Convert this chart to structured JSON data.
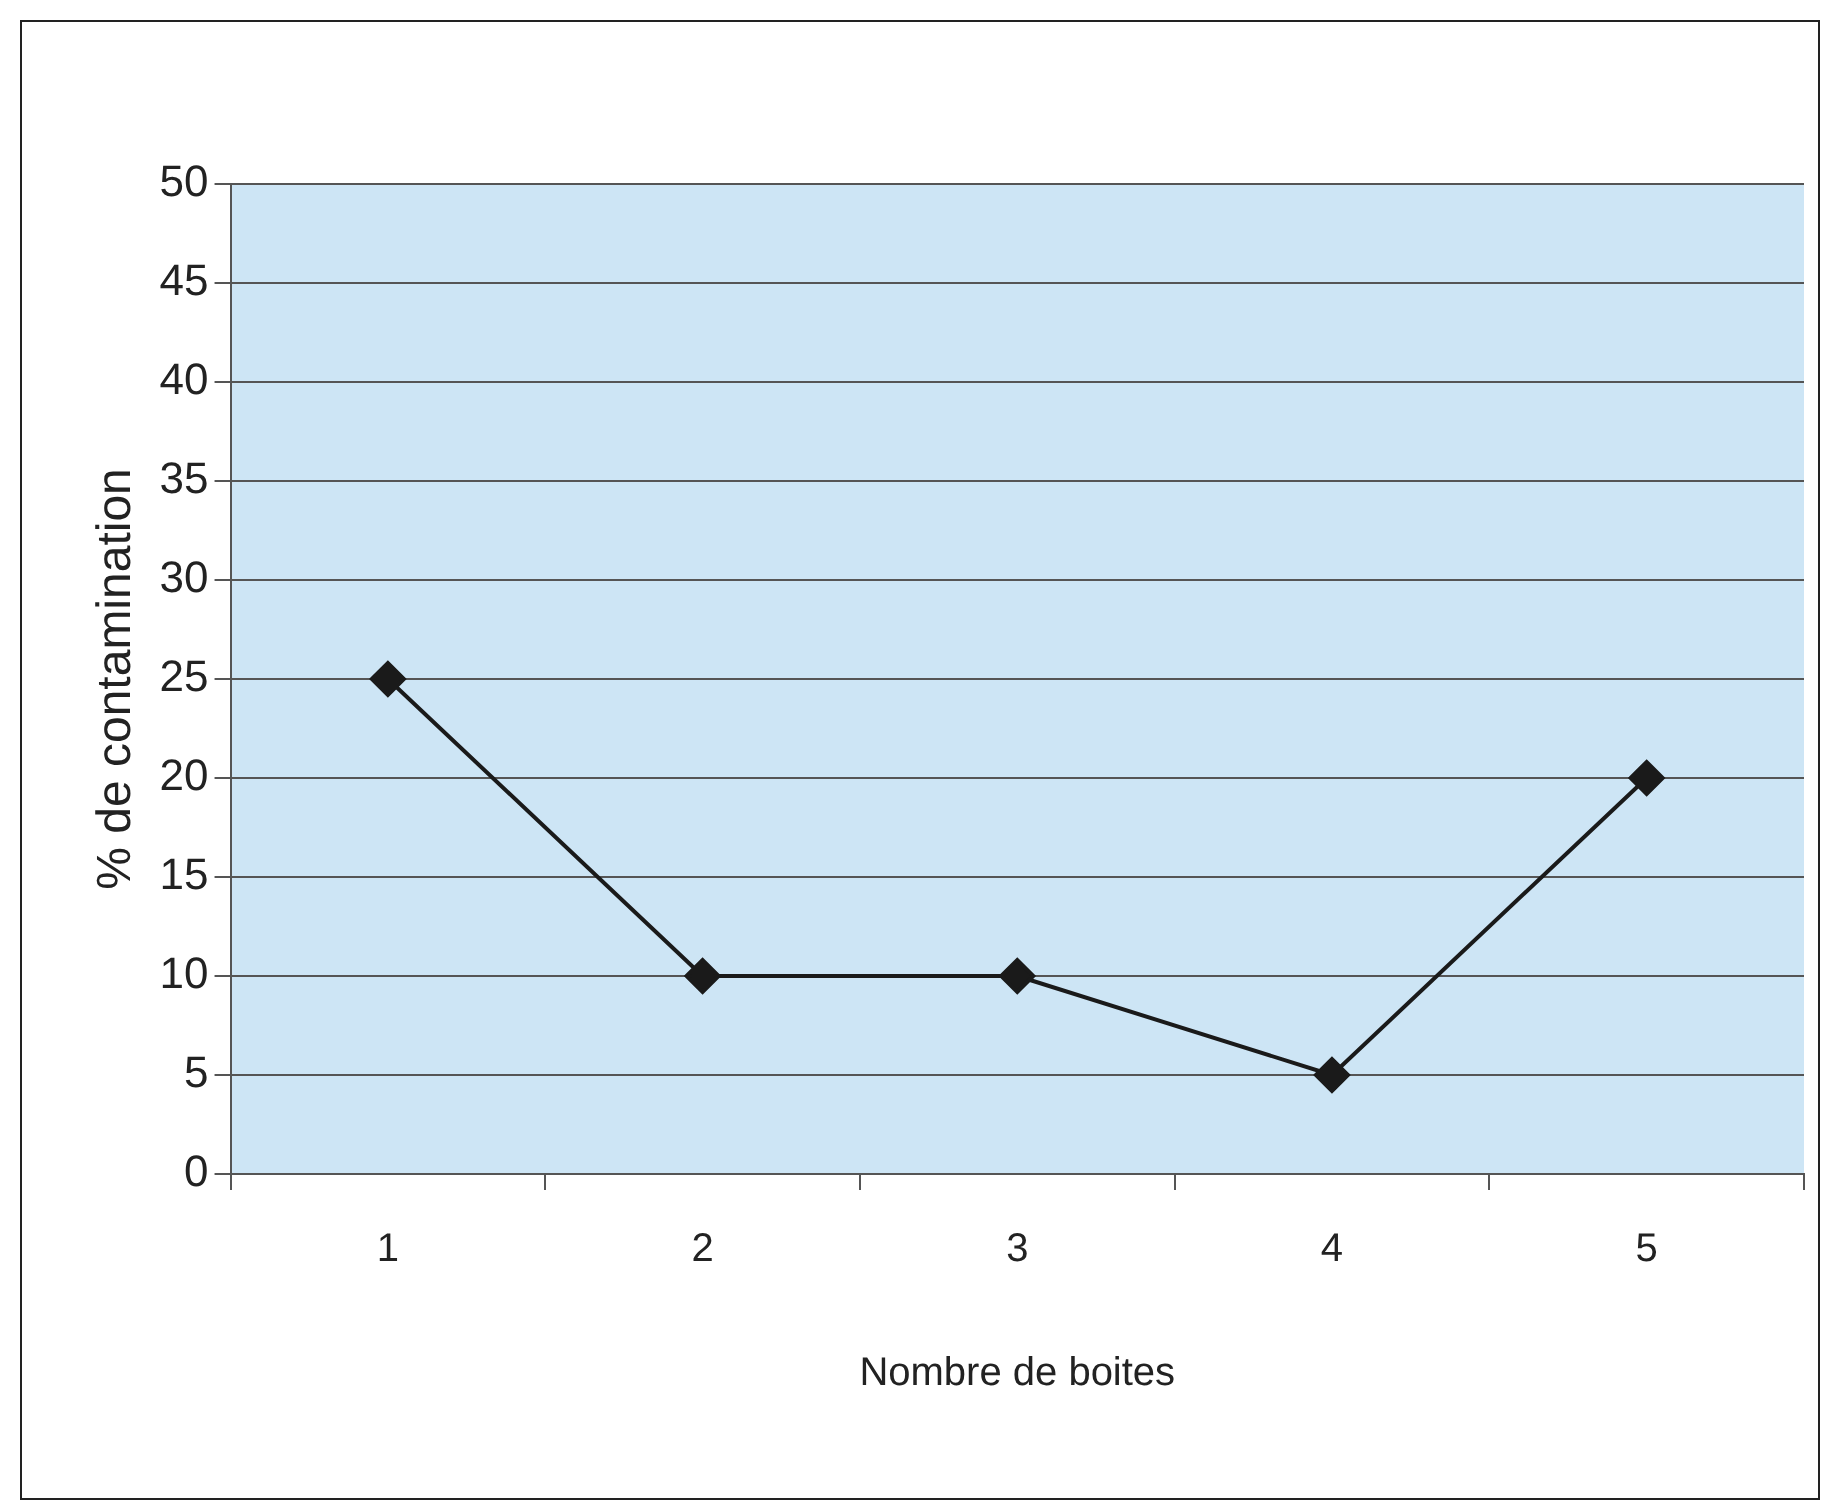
{
  "chart_data": {
    "type": "line",
    "xlabel": "Nombre de boites",
    "ylabel": "% de contamination",
    "categories": [
      "1",
      "2",
      "3",
      "4",
      "5"
    ],
    "series": [
      {
        "color": "#1a1a1a",
        "values": [
          25,
          10,
          10,
          5,
          20
        ]
      }
    ],
    "ylim": [
      0,
      50
    ],
    "yticks": [
      0,
      5,
      10,
      15,
      20,
      25,
      30,
      35,
      40,
      45,
      50
    ],
    "grid": "y",
    "legend": false,
    "marker": "diamond",
    "line_style": "solid"
  }
}
